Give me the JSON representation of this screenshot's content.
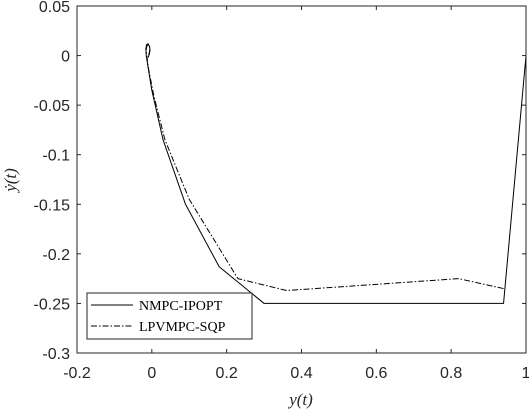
{
  "chart_data": {
    "type": "line",
    "title": "",
    "xlabel": "y(t)",
    "ylabel": "ẏ(t)",
    "xlim": [
      -0.2,
      1.0
    ],
    "ylim": [
      -0.3,
      0.05
    ],
    "xticks": [
      -0.2,
      0,
      0.2,
      0.4,
      0.6,
      0.8,
      1.0
    ],
    "xtick_labels": [
      "-0.2",
      "0",
      "0.2",
      "0.4",
      "0.6",
      "0.8",
      "1"
    ],
    "yticks": [
      0.05,
      0,
      -0.05,
      -0.1,
      -0.15,
      -0.2,
      -0.25,
      -0.3
    ],
    "ytick_labels": [
      "0.05",
      "0",
      "-0.05",
      "-0.1",
      "-0.15",
      "-0.2",
      "-0.25",
      "-0.3"
    ],
    "grid": false,
    "legend_position": "bottom-left",
    "series": [
      {
        "name": "NMPC-IPOPT",
        "style": "solid",
        "color": "#000000",
        "x": [
          1.0,
          0.94,
          0.3,
          0.18,
          0.09,
          0.03,
          0.0,
          -0.01,
          -0.015,
          -0.016,
          -0.014,
          -0.01,
          -0.006,
          -0.005,
          -0.007,
          -0.01
        ],
        "y": [
          0.0,
          -0.25,
          -0.25,
          -0.213,
          -0.15,
          -0.085,
          -0.035,
          -0.012,
          0.0,
          0.007,
          0.011,
          0.012,
          0.009,
          0.005,
          0.001,
          -0.002
        ]
      },
      {
        "name": "LPVMPC-SQP",
        "style": "dashdot",
        "color": "#000000",
        "x": [
          0.94,
          0.82,
          0.36,
          0.23,
          0.1,
          0.035,
          0.005,
          -0.008,
          -0.013,
          -0.015,
          -0.013,
          -0.008,
          -0.005,
          -0.006,
          -0.009
        ],
        "y": [
          -0.235,
          -0.225,
          -0.237,
          -0.225,
          -0.145,
          -0.085,
          -0.04,
          -0.015,
          -0.002,
          0.006,
          0.01,
          0.011,
          0.008,
          0.004,
          0.0
        ]
      }
    ]
  }
}
